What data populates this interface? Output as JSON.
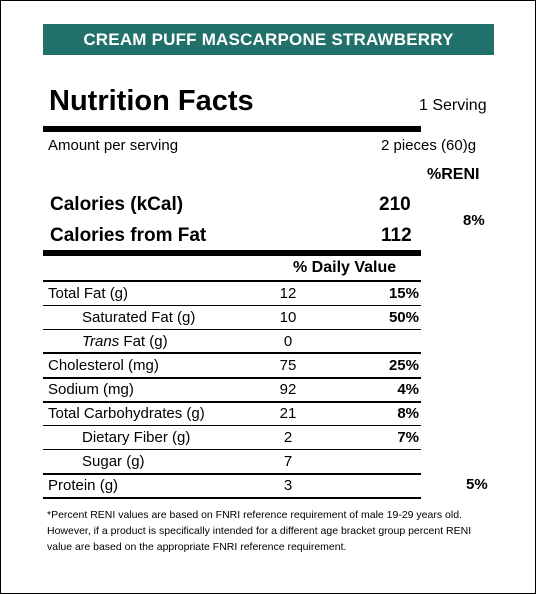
{
  "banner": "CREAM PUFF MASCARPONE STRAWBERRY",
  "title": "Nutrition Facts",
  "serving": "1 Serving",
  "amount_per_serving_label": "Amount per serving",
  "amount_per_serving_value": "2 pieces (60)g",
  "reni_header": "%RENI",
  "calories": {
    "label": "Calories (kCal)",
    "value": "210",
    "reni": "8%"
  },
  "calories_from_fat": {
    "label": "Calories from Fat",
    "value": "112"
  },
  "daily_value_header": "% Daily Value",
  "nutrients": [
    {
      "label": "Total Fat (g)",
      "amount": "12",
      "pct": "15%"
    },
    {
      "label": "Saturated Fat (g)",
      "amount": "10",
      "pct": "50%"
    },
    {
      "label_italic": "Trans",
      "label_rest": " Fat (g)",
      "amount": "0",
      "pct": ""
    },
    {
      "label": "Cholesterol (mg)",
      "amount": "75",
      "pct": "25%"
    },
    {
      "label": "Sodium (mg)",
      "amount": "92",
      "pct": "4%"
    },
    {
      "label": "Total Carbohydrates (g)",
      "amount": "21",
      "pct": "8%"
    },
    {
      "label": "Dietary Fiber (g)",
      "amount": "2",
      "pct": "7%"
    },
    {
      "label": "Sugar (g)",
      "amount": "7",
      "pct": ""
    },
    {
      "label": "Protein (g)",
      "amount": "3",
      "pct": ""
    }
  ],
  "protein_reni": "5%",
  "footnote": "*Percent RENI values are based on FNRI reference requirement of male 19-29 years old. However, if a product is specifically intended for a different age bracket group percent RENI value are based on the appropriate FNRI reference requirement.",
  "colors": {
    "banner_bg": "#21706a",
    "banner_text": "#ffffff"
  }
}
